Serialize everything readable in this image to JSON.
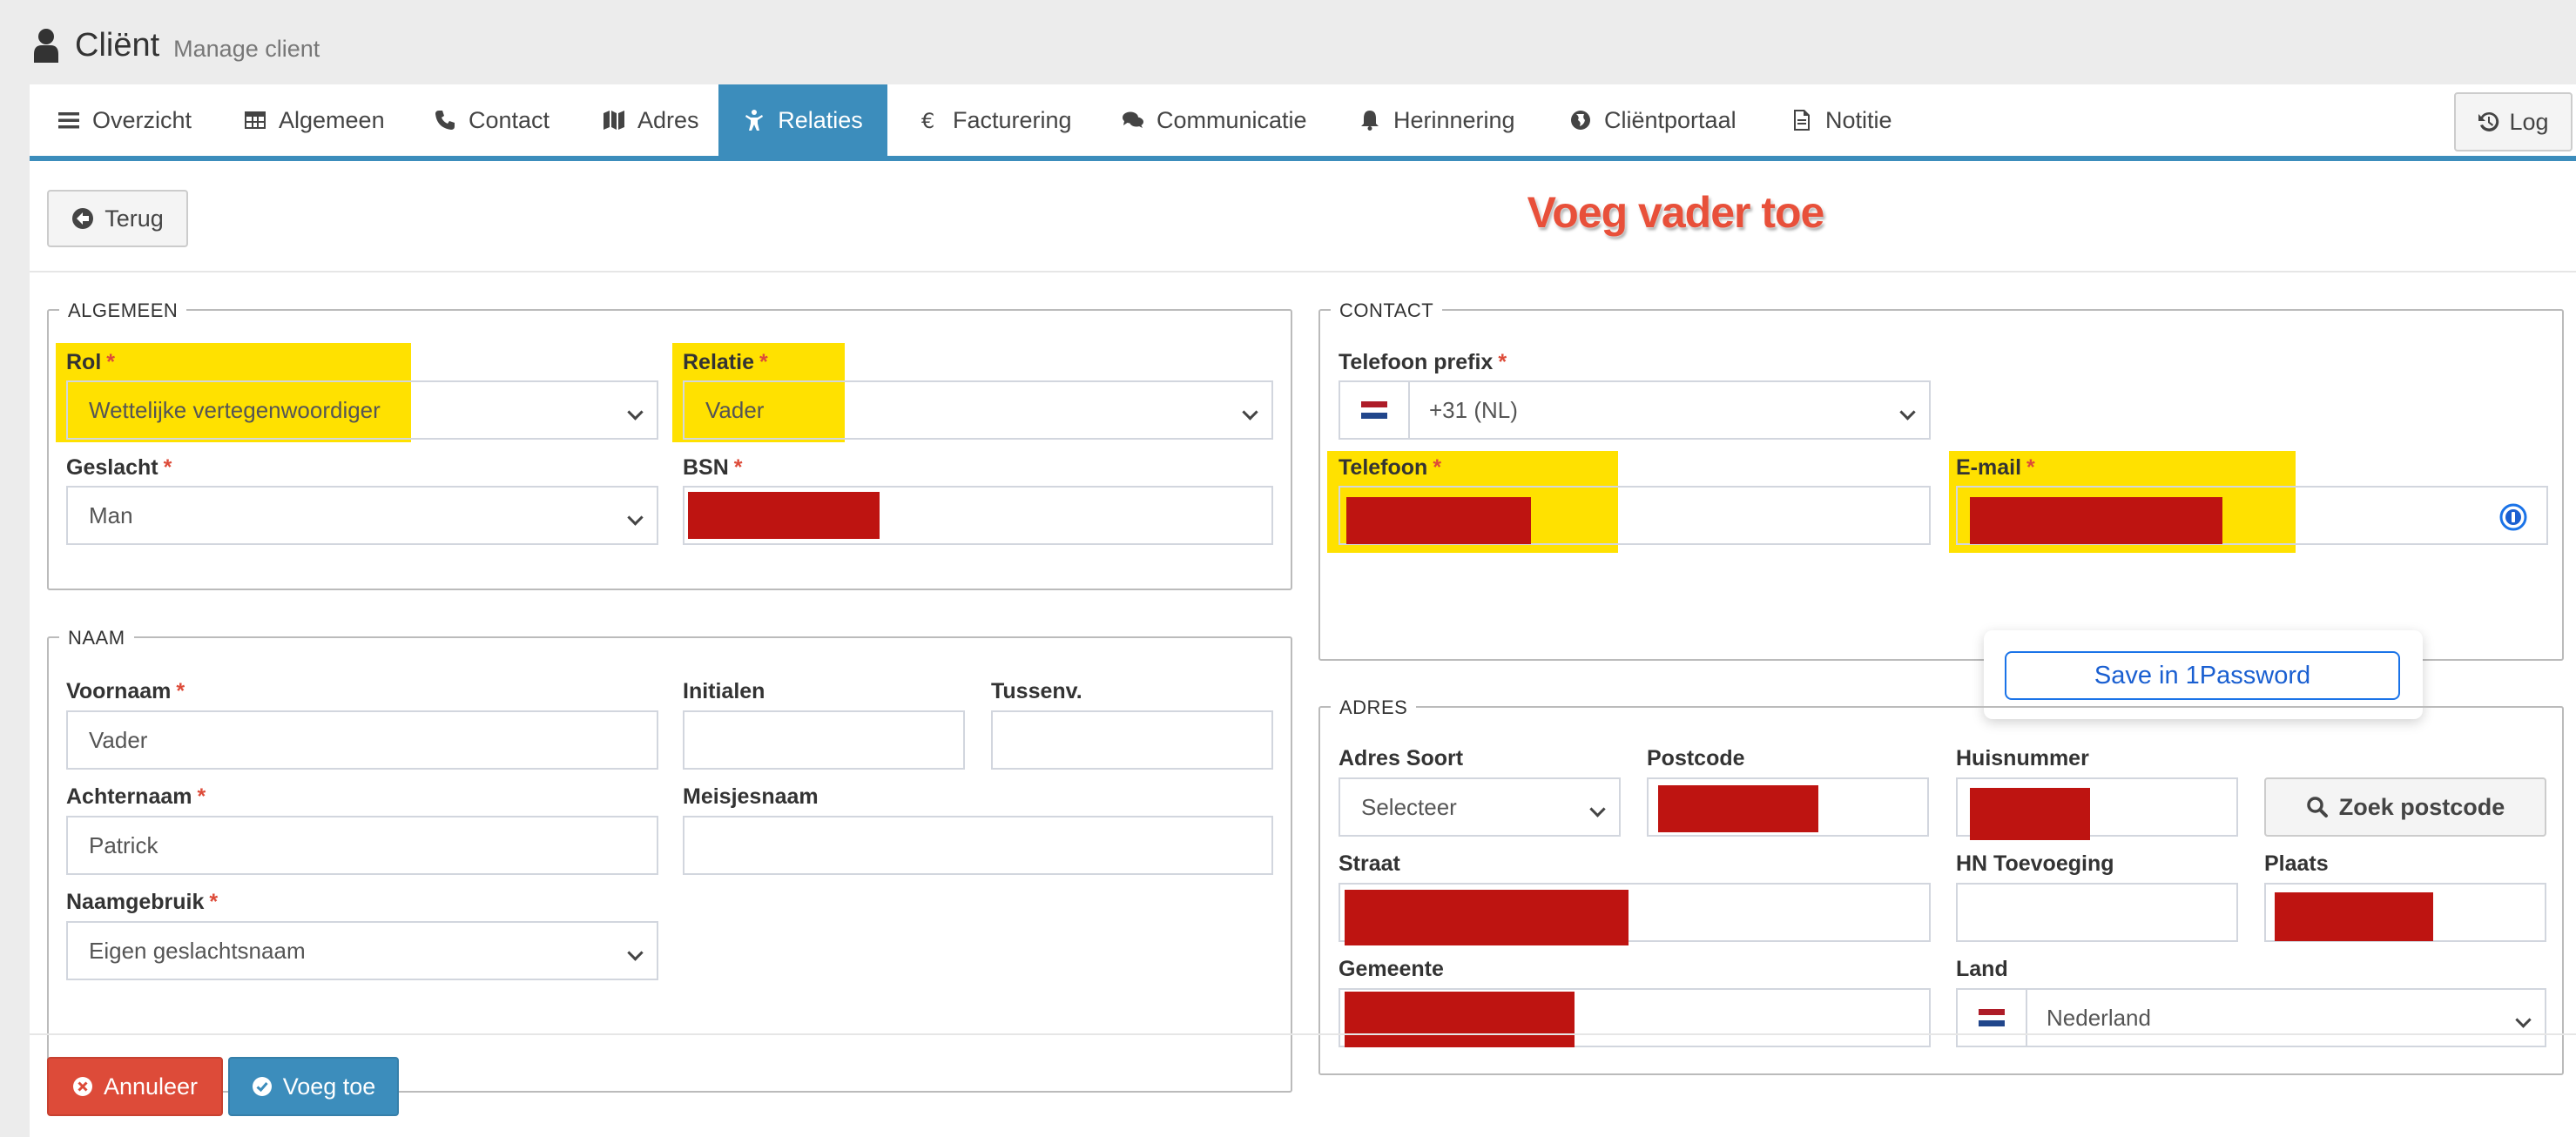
{
  "header": {
    "title": "Cliënt",
    "subtitle": "Manage client"
  },
  "tabs": [
    {
      "label": "Overzicht",
      "icon": "bars-icon"
    },
    {
      "label": "Algemeen",
      "icon": "table-icon"
    },
    {
      "label": "Contact",
      "icon": "phone-icon"
    },
    {
      "label": "Adres",
      "icon": "map-icon"
    },
    {
      "label": "Relaties",
      "icon": "child-icon",
      "active": true
    },
    {
      "label": "Facturering",
      "icon": "euro-icon"
    },
    {
      "label": "Communicatie",
      "icon": "comments-icon"
    },
    {
      "label": "Herinnering",
      "icon": "bell-icon"
    },
    {
      "label": "Cliëntportaal",
      "icon": "globe-icon"
    },
    {
      "label": "Notitie",
      "icon": "file-icon"
    }
  ],
  "log_label": "Log",
  "back_label": "Terug",
  "annotation": "Voeg vader toe",
  "algemeen": {
    "legend": "ALGEMEEN",
    "rol": {
      "label": "Rol",
      "value": "Wettelijke vertegenwoordiger"
    },
    "relatie": {
      "label": "Relatie",
      "value": "Vader"
    },
    "geslacht": {
      "label": "Geslacht",
      "value": "Man"
    },
    "bsn": {
      "label": "BSN"
    }
  },
  "naam": {
    "legend": "NAAM",
    "voornaam": {
      "label": "Voornaam",
      "value": "Vader"
    },
    "initialen": {
      "label": "Initialen",
      "value": ""
    },
    "tussenv": {
      "label": "Tussenv.",
      "value": ""
    },
    "achternaam": {
      "label": "Achternaam",
      "value": "Patrick"
    },
    "meisjesnaam": {
      "label": "Meisjesnaam",
      "value": ""
    },
    "naamgebruik": {
      "label": "Naamgebruik",
      "value": "Eigen geslachtsnaam"
    }
  },
  "contact": {
    "legend": "CONTACT",
    "prefix": {
      "label": "Telefoon prefix",
      "value": "+31 (NL)"
    },
    "telefoon": {
      "label": "Telefoon"
    },
    "email": {
      "label": "E-mail"
    }
  },
  "onepassword": {
    "save_label": "Save in 1Password"
  },
  "adres": {
    "legend": "ADRES",
    "soort": {
      "label": "Adres Soort",
      "value": "Selecteer"
    },
    "postcode": {
      "label": "Postcode"
    },
    "huisnummer": {
      "label": "Huisnummer"
    },
    "zoek_label": "Zoek postcode",
    "straat": {
      "label": "Straat"
    },
    "hn_toevoeging": {
      "label": "HN Toevoeging",
      "value": ""
    },
    "plaats": {
      "label": "Plaats"
    },
    "gemeente": {
      "label": "Gemeente"
    },
    "land": {
      "label": "Land",
      "value": "Nederland"
    }
  },
  "actions": {
    "cancel_label": "Annuleer",
    "add_label": "Voeg toe"
  },
  "colors": {
    "primary": "#3c8dbc",
    "danger": "#dd4b39",
    "highlight": "#ffe100",
    "redaction": "#be1411",
    "annotation": "#e8503a"
  }
}
